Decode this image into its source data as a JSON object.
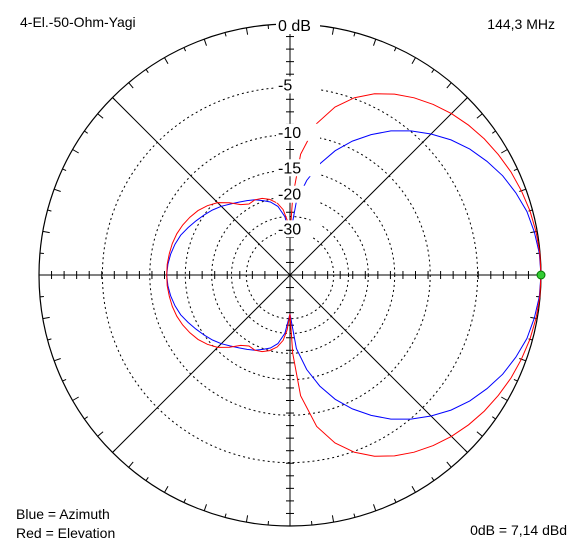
{
  "header": {
    "antenna_name": "4-El.-50-Ohm-Yagi",
    "frequency": "144,3 MHz"
  },
  "footer": {
    "legend_blue": "Blue = Azimuth",
    "legend_red": "Red = Elevation",
    "reference": "0dB = 7,14 dBd"
  },
  "chart_data": {
    "type": "polar",
    "title": "",
    "radial_labels": [
      "0 dB",
      "-5",
      "-10",
      "-15",
      "-20",
      "-30"
    ],
    "ring_db": [
      0,
      -5,
      -10,
      -15,
      -20,
      -25,
      -30
    ],
    "marker_color": "#33cc33",
    "series": [
      {
        "name": "Azimuth",
        "color": "#0000ff",
        "points": [
          {
            "angle_deg": 0,
            "db": 0
          },
          {
            "angle_deg": 5,
            "db": -0.05
          },
          {
            "angle_deg": 10,
            "db": -0.2
          },
          {
            "angle_deg": 15,
            "db": -0.4
          },
          {
            "angle_deg": 20,
            "db": -0.75
          },
          {
            "angle_deg": 25,
            "db": -1.15
          },
          {
            "angle_deg": 30,
            "db": -1.7
          },
          {
            "angle_deg": 35,
            "db": -2.3
          },
          {
            "angle_deg": 40,
            "db": -3.05
          },
          {
            "angle_deg": 45,
            "db": -3.95
          },
          {
            "angle_deg": 50,
            "db": -4.95
          },
          {
            "angle_deg": 55,
            "db": -6.1
          },
          {
            "angle_deg": 60,
            "db": -7.5
          },
          {
            "angle_deg": 65,
            "db": -9.1
          },
          {
            "angle_deg": 70,
            "db": -11.0
          },
          {
            "angle_deg": 75,
            "db": -13.4
          },
          {
            "angle_deg": 80,
            "db": -16.5
          },
          {
            "angle_deg": 85,
            "db": -21.0
          },
          {
            "angle_deg": 90,
            "db": -32.0
          },
          {
            "angle_deg": 95,
            "db": -25.0
          },
          {
            "angle_deg": 100,
            "db": -22.0
          },
          {
            "angle_deg": 105,
            "db": -20.6
          },
          {
            "angle_deg": 110,
            "db": -19.8
          },
          {
            "angle_deg": 115,
            "db": -19.0
          },
          {
            "angle_deg": 120,
            "db": -18.4
          },
          {
            "angle_deg": 125,
            "db": -17.8
          },
          {
            "angle_deg": 130,
            "db": -17.1
          },
          {
            "angle_deg": 135,
            "db": -16.3
          },
          {
            "angle_deg": 140,
            "db": -15.6
          },
          {
            "angle_deg": 145,
            "db": -15.0
          },
          {
            "angle_deg": 150,
            "db": -14.4
          },
          {
            "angle_deg": 155,
            "db": -13.8
          },
          {
            "angle_deg": 160,
            "db": -13.2
          },
          {
            "angle_deg": 165,
            "db": -12.8
          },
          {
            "angle_deg": 170,
            "db": -12.5
          },
          {
            "angle_deg": 175,
            "db": -12.3
          },
          {
            "angle_deg": 180,
            "db": -12.2
          }
        ]
      },
      {
        "name": "Elevation",
        "color": "#ff0000",
        "points": [
          {
            "angle_deg": 0,
            "db": 0
          },
          {
            "angle_deg": 5,
            "db": -0.02
          },
          {
            "angle_deg": 10,
            "db": -0.08
          },
          {
            "angle_deg": 15,
            "db": -0.18
          },
          {
            "angle_deg": 20,
            "db": -0.33
          },
          {
            "angle_deg": 25,
            "db": -0.5
          },
          {
            "angle_deg": 30,
            "db": -0.72
          },
          {
            "angle_deg": 35,
            "db": -0.97
          },
          {
            "angle_deg": 40,
            "db": -1.27
          },
          {
            "angle_deg": 45,
            "db": -1.63
          },
          {
            "angle_deg": 50,
            "db": -2.05
          },
          {
            "angle_deg": 55,
            "db": -2.55
          },
          {
            "angle_deg": 60,
            "db": -3.15
          },
          {
            "angle_deg": 65,
            "db": -3.9
          },
          {
            "angle_deg": 70,
            "db": -4.9
          },
          {
            "angle_deg": 75,
            "db": -6.3
          },
          {
            "angle_deg": 80,
            "db": -8.4
          },
          {
            "angle_deg": 85,
            "db": -12.5
          },
          {
            "angle_deg": 88,
            "db": -20.0
          },
          {
            "angle_deg": 90,
            "db": -32.0
          },
          {
            "angle_deg": 93,
            "db": -26.0
          },
          {
            "angle_deg": 96,
            "db": -23.0
          },
          {
            "angle_deg": 100,
            "db": -21.2
          },
          {
            "angle_deg": 105,
            "db": -20.0
          },
          {
            "angle_deg": 110,
            "db": -19.3
          },
          {
            "angle_deg": 115,
            "db": -19.0
          },
          {
            "angle_deg": 120,
            "db": -19.2
          },
          {
            "angle_deg": 125,
            "db": -18.4
          },
          {
            "angle_deg": 130,
            "db": -16.8
          },
          {
            "angle_deg": 135,
            "db": -15.4
          },
          {
            "angle_deg": 140,
            "db": -14.5
          },
          {
            "angle_deg": 145,
            "db": -13.8
          },
          {
            "angle_deg": 150,
            "db": -13.3
          },
          {
            "angle_deg": 155,
            "db": -12.9
          },
          {
            "angle_deg": 160,
            "db": -12.6
          },
          {
            "angle_deg": 165,
            "db": -12.4
          },
          {
            "angle_deg": 170,
            "db": -12.3
          },
          {
            "angle_deg": 175,
            "db": -12.2
          },
          {
            "angle_deg": 180,
            "db": -12.2
          }
        ]
      }
    ]
  }
}
